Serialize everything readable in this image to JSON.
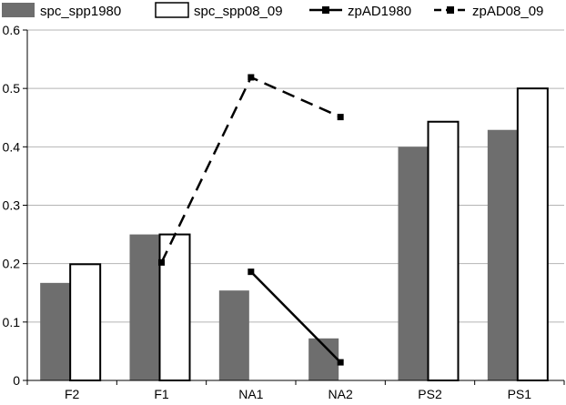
{
  "chart_data": {
    "type": "bar",
    "title": "",
    "xlabel": "",
    "ylabel": "",
    "categories": [
      "F2",
      "F1",
      "NA1",
      "NA2",
      "PS2",
      "PS1"
    ],
    "ylim": [
      0,
      0.6
    ],
    "yticks": [
      0,
      0.1,
      0.2,
      0.3,
      0.4,
      0.5,
      0.6
    ],
    "ytick_labels": [
      "0",
      "0.1",
      "0.2",
      "0.3",
      "0.4",
      "0.5",
      "0.6"
    ],
    "grid": true,
    "legend_position": "top",
    "bar_series": [
      {
        "name": "spc_spp1980",
        "color": "#6e6e6e",
        "values": [
          0.167,
          0.25,
          0.154,
          0.072,
          0.4,
          0.429
        ]
      },
      {
        "name": "spc_spp08_09",
        "color": "#ffffff",
        "values": [
          0.199,
          0.25,
          0,
          0,
          0.443,
          0.5
        ]
      }
    ],
    "line_series": [
      {
        "name": "zpAD1980",
        "color": "#000000",
        "dashed": false,
        "values": [
          null,
          null,
          0.186,
          0.031,
          null,
          null
        ]
      },
      {
        "name": "zpAD08_09",
        "color": "#000000",
        "dashed": true,
        "values": [
          null,
          0.202,
          0.519,
          0.451,
          null,
          null
        ]
      }
    ]
  }
}
